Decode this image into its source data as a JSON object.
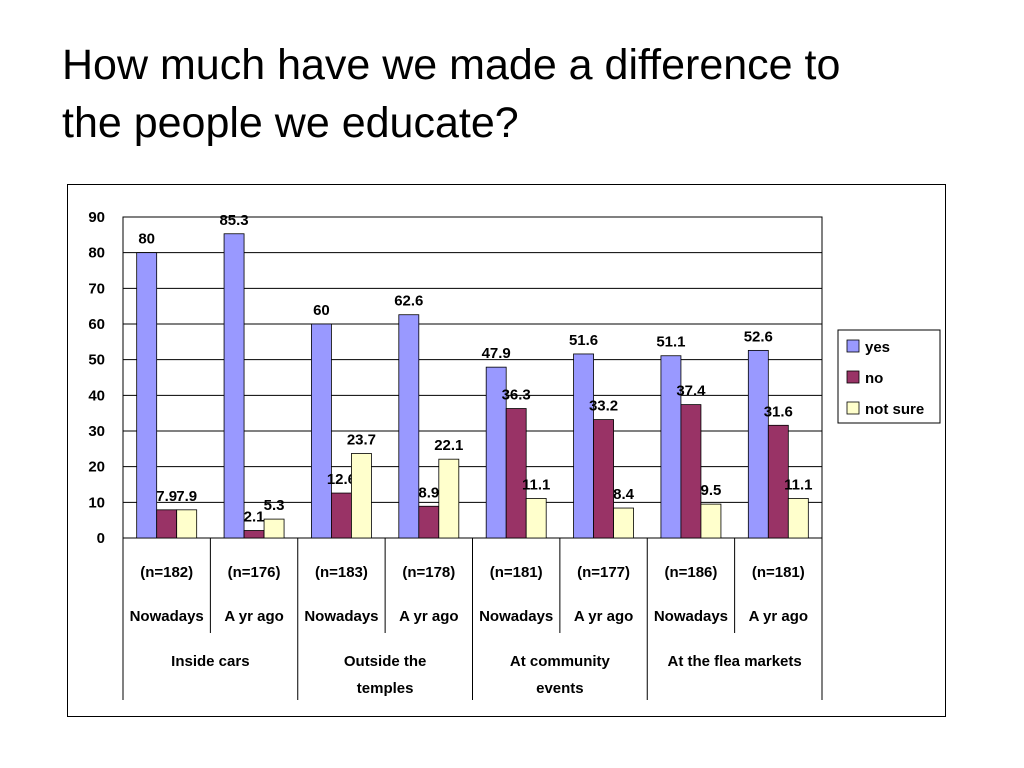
{
  "slide": {
    "title_line1": "How much have we made a difference to",
    "title_line2": "the people we educate?"
  },
  "chart_data": {
    "type": "bar",
    "ylim": [
      0,
      90
    ],
    "yticks": [
      0,
      10,
      20,
      30,
      40,
      50,
      60,
      70,
      80,
      90
    ],
    "grid": true,
    "legend_position": "right",
    "categories": [
      {
        "sample": "(n=182)",
        "period": "Nowadays",
        "location": "Inside cars"
      },
      {
        "sample": "(n=176)",
        "period": "A yr ago",
        "location": "Inside cars"
      },
      {
        "sample": "(n=183)",
        "period": "Nowadays",
        "location": "Outside the temples"
      },
      {
        "sample": "(n=178)",
        "period": "A yr ago",
        "location": "Outside the temples"
      },
      {
        "sample": "(n=181)",
        "period": "Nowadays",
        "location": "At community events"
      },
      {
        "sample": "(n=177)",
        "period": "A yr ago",
        "location": "At community events"
      },
      {
        "sample": "(n=186)",
        "period": "Nowadays",
        "location": "At the flea markets"
      },
      {
        "sample": "(n=181)",
        "period": "A yr ago",
        "location": "At the flea markets"
      }
    ],
    "groups": [
      {
        "lines": [
          "Inside cars"
        ]
      },
      {
        "lines": [
          "Outside the",
          "temples"
        ]
      },
      {
        "lines": [
          "At community",
          "events"
        ]
      },
      {
        "lines": [
          "At the flea markets"
        ]
      }
    ],
    "series": [
      {
        "name": "yes",
        "color": "#9999FF",
        "values": [
          80,
          85.3,
          60,
          62.6,
          47.9,
          51.6,
          51.1,
          52.6
        ]
      },
      {
        "name": "no",
        "color": "#993366",
        "values": [
          7.9,
          2.1,
          12.6,
          8.9,
          36.3,
          33.2,
          37.4,
          31.6
        ]
      },
      {
        "name": "not sure",
        "color": "#FFFFCC",
        "values": [
          7.9,
          5.3,
          23.7,
          22.1,
          11.1,
          8.4,
          9.5,
          11.1
        ]
      }
    ]
  }
}
